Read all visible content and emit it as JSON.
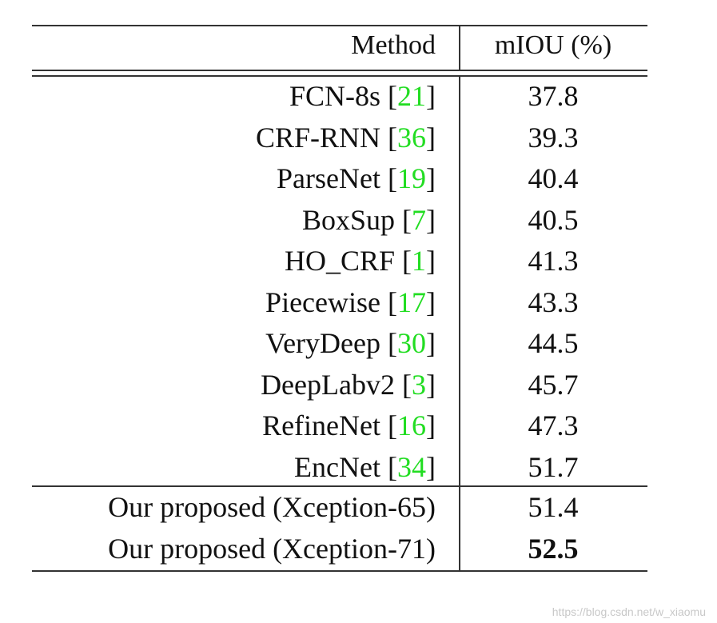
{
  "table": {
    "header": [
      "Method",
      "mIOU (%)"
    ],
    "rows": [
      {
        "method": "FCN-8s ",
        "open": "[",
        "ref": "21",
        "close": "]",
        "value": 37.8
      },
      {
        "method": "CRF-RNN ",
        "open": "[",
        "ref": "36",
        "close": "]",
        "value": 39.3
      },
      {
        "method": "ParseNet ",
        "open": "[",
        "ref": "19",
        "close": "]",
        "value": 40.4
      },
      {
        "method": "BoxSup ",
        "open": "[",
        "ref": "7",
        "close": "]",
        "value": 40.5
      },
      {
        "method": "HO_CRF ",
        "open": "[",
        "ref": "1",
        "close": "]",
        "value": 41.3
      },
      {
        "method": "Piecewise ",
        "open": "[",
        "ref": "17",
        "close": "]",
        "value": 43.3
      },
      {
        "method": "VeryDeep ",
        "open": "[",
        "ref": "30",
        "close": "]",
        "value": 44.5
      },
      {
        "method": "DeepLabv2 ",
        "open": "[",
        "ref": "3",
        "close": "]",
        "value": 45.7
      },
      {
        "method": "RefineNet ",
        "open": "[",
        "ref": "16",
        "close": "]",
        "value": 47.3
      },
      {
        "method": "EncNet ",
        "open": "[",
        "ref": "34",
        "close": "]",
        "value": 51.7
      },
      {
        "method": "Our proposed (Xception-65)",
        "value": 51.4
      },
      {
        "method": "Our proposed (Xception-71)",
        "value": 52.5,
        "best": true
      }
    ]
  },
  "watermark": "https://blog.csdn.net/w_xiaomu"
}
